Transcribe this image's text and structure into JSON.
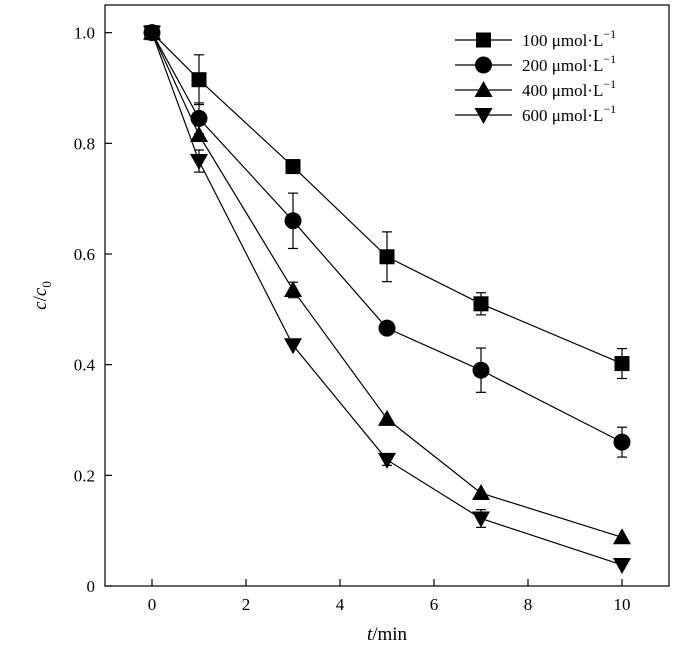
{
  "chart_data": {
    "type": "line",
    "xlabel": {
      "italic": "t",
      "rest": "/min"
    },
    "ylabel": {
      "c": "c",
      "c0": "c",
      "sub": "0"
    },
    "xlim": [
      -1,
      11
    ],
    "ylim": [
      0,
      1.05
    ],
    "xticks": [
      0,
      2,
      4,
      6,
      8,
      10
    ],
    "yticks": [
      0,
      0.2,
      0.4,
      0.6,
      0.8,
      1.0
    ],
    "yticklabels": [
      "0",
      "0.2",
      "0.4",
      "0.6",
      "0.8",
      "1.0"
    ],
    "x": [
      0,
      1,
      3,
      5,
      7,
      10
    ],
    "grid": false,
    "legend_position": "top-right",
    "series": [
      {
        "name": "100 μmol·L",
        "superscript": "−1",
        "marker": "square",
        "values": [
          1.0,
          0.915,
          0.758,
          0.595,
          0.51,
          0.402
        ],
        "error": [
          0,
          0.045,
          0,
          0.045,
          0.02,
          0.027
        ]
      },
      {
        "name": "200 μmol·L",
        "superscript": "−1",
        "marker": "circle",
        "values": [
          1.0,
          0.845,
          0.66,
          0.466,
          0.39,
          0.26
        ],
        "error": [
          0,
          0.028,
          0.05,
          0,
          0.04,
          0.027
        ]
      },
      {
        "name": "400 μmol·L",
        "superscript": "−1",
        "marker": "triangle-up",
        "values": [
          1.0,
          0.815,
          0.535,
          0.302,
          0.168,
          0.088
        ],
        "error": [
          0,
          0,
          0.014,
          0,
          0,
          0
        ]
      },
      {
        "name": "600 μmol·L",
        "superscript": "−1",
        "marker": "triangle-down",
        "values": [
          1.0,
          0.768,
          0.435,
          0.228,
          0.122,
          0.038
        ],
        "error": [
          0,
          0.02,
          0,
          0.01,
          0.016,
          0
        ]
      }
    ]
  }
}
